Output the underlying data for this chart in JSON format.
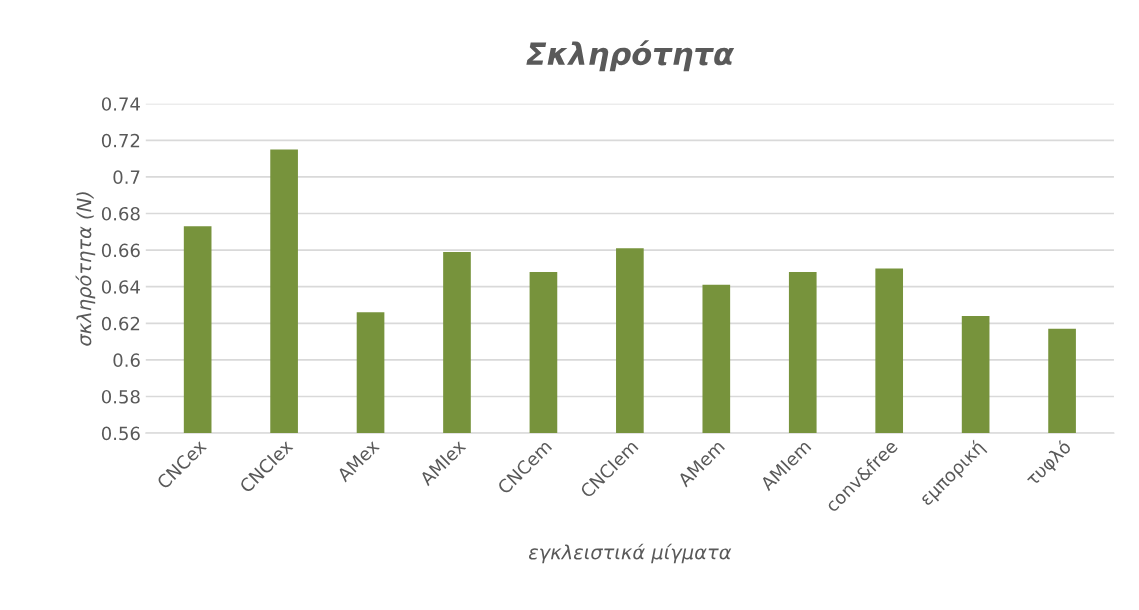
{
  "chart_data": {
    "type": "bar",
    "title": "Σκληρότητα",
    "xlabel": "εγκλειστικά μίγματα",
    "ylabel": "σκληρότητα (N)",
    "categories": [
      "CNCex",
      "CNCIex",
      "AMex",
      "AMIex",
      "CNCem",
      "CNCIem",
      "AMem",
      "AMIem",
      "conv&free",
      "εμπορική",
      "τυφλό"
    ],
    "values": [
      0.673,
      0.715,
      0.626,
      0.659,
      0.648,
      0.661,
      0.641,
      0.648,
      0.65,
      0.624,
      0.617
    ],
    "color": "#77933c",
    "ylim": [
      0.56,
      0.74
    ],
    "yticks": [
      0.56,
      0.58,
      {
        "value": 0.6,
        "label": "0.6"
      },
      0.62,
      0.64,
      0.66,
      0.68,
      {
        "value": 0.7,
        "label": "0.7"
      },
      0.72,
      0.74
    ],
    "grid": "y",
    "legend": false
  }
}
